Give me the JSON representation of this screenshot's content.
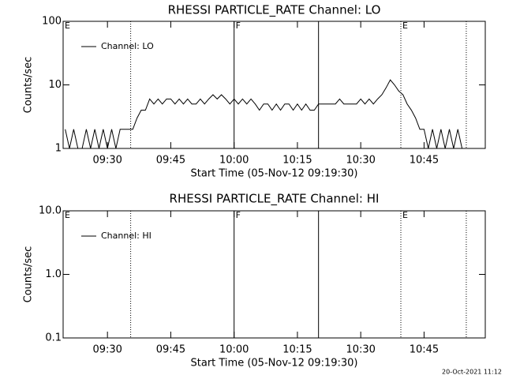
{
  "chart_data": [
    {
      "type": "line",
      "title": "RHESSI PARTICLE_RATE Channel: LO",
      "y_label": "Counts/sec",
      "x_label": "Start Time (05-Nov-12 09:19:30)",
      "xlim": [
        "09:19:30",
        "10:59:30"
      ],
      "xticks": [
        "09:30",
        "09:45",
        "10:00",
        "10:15",
        "10:30",
        "10:45"
      ],
      "ylim": [
        1,
        100
      ],
      "yticks": [
        1,
        10,
        100
      ],
      "ylog": true,
      "legend": "top-left",
      "lines": [
        {
          "x": "09:35:30",
          "style": "dotted"
        },
        {
          "x": "10:00",
          "style": "solid"
        },
        {
          "x": "10:20",
          "style": "solid"
        },
        {
          "x": "10:39:30",
          "style": "dotted"
        },
        {
          "x": "10:55",
          "style": "dotted"
        }
      ],
      "annotations": [
        {
          "label": "E",
          "x": "09:19:30"
        },
        {
          "label": "F",
          "x": "10:00"
        },
        {
          "label": "E",
          "x": "10:39:30"
        }
      ],
      "series": [
        {
          "name": "Channel: LO",
          "color": "#000000",
          "x": [
            "09:20",
            "09:21",
            "09:22",
            "09:23",
            "09:24",
            "09:25",
            "09:26",
            "09:27",
            "09:28",
            "09:29",
            "09:30",
            "09:31",
            "09:32",
            "09:33",
            "09:34",
            "09:35",
            "09:36",
            "09:37",
            "09:38",
            "09:39",
            "09:40",
            "09:41",
            "09:42",
            "09:43",
            "09:44",
            "09:45",
            "09:46",
            "09:47",
            "09:48",
            "09:49",
            "09:50",
            "09:51",
            "09:52",
            "09:53",
            "09:54",
            "09:55",
            "09:56",
            "09:57",
            "09:58",
            "09:59",
            "10:00",
            "10:01",
            "10:02",
            "10:03",
            "10:04",
            "10:05",
            "10:06",
            "10:07",
            "10:08",
            "10:09",
            "10:10",
            "10:11",
            "10:12",
            "10:13",
            "10:14",
            "10:15",
            "10:16",
            "10:17",
            "10:18",
            "10:19",
            "10:20",
            "10:21",
            "10:22",
            "10:23",
            "10:24",
            "10:25",
            "10:26",
            "10:27",
            "10:28",
            "10:29",
            "10:30",
            "10:31",
            "10:32",
            "10:33",
            "10:34",
            "10:35",
            "10:36",
            "10:37",
            "10:38",
            "10:39",
            "10:40",
            "10:41",
            "10:42",
            "10:43",
            "10:44",
            "10:45",
            "10:46",
            "10:47",
            "10:48",
            "10:49",
            "10:50",
            "10:51",
            "10:52",
            "10:53",
            "10:54"
          ],
          "values": [
            2,
            1,
            2,
            1,
            1,
            2,
            1,
            2,
            1,
            2,
            1,
            2,
            1,
            2,
            2,
            2,
            2,
            3,
            4,
            4,
            6,
            5,
            6,
            5,
            6,
            6,
            5,
            6,
            5,
            6,
            5,
            5,
            6,
            5,
            6,
            7,
            6,
            7,
            6,
            5,
            6,
            5,
            6,
            5,
            6,
            5,
            4,
            5,
            5,
            4,
            5,
            4,
            5,
            5,
            4,
            5,
            4,
            5,
            4,
            4,
            5,
            5,
            5,
            5,
            5,
            6,
            5,
            5,
            5,
            5,
            6,
            5,
            6,
            5,
            6,
            7,
            9,
            12,
            10,
            8,
            7,
            5,
            4,
            3,
            2,
            2,
            1,
            2,
            1,
            2,
            1,
            2,
            1,
            2,
            1
          ]
        }
      ]
    },
    {
      "type": "line",
      "title": "RHESSI PARTICLE_RATE Channel: HI",
      "y_label": "Counts/sec",
      "x_label": "Start Time (05-Nov-12 09:19:30)",
      "xlim": [
        "09:19:30",
        "10:59:30"
      ],
      "xticks": [
        "09:30",
        "09:45",
        "10:00",
        "10:15",
        "10:30",
        "10:45"
      ],
      "ylim": [
        0.1,
        10
      ],
      "yticks": [
        0.1,
        {
          "value": 1,
          "label": "1.0"
        },
        {
          "value": 10,
          "label": "10.0"
        }
      ],
      "ylog": true,
      "legend": "top-left",
      "lines": [
        {
          "x": "09:35:30",
          "style": "dotted"
        },
        {
          "x": "10:00",
          "style": "solid"
        },
        {
          "x": "10:20",
          "style": "solid"
        },
        {
          "x": "10:39:30",
          "style": "dotted"
        },
        {
          "x": "10:55",
          "style": "dotted"
        }
      ],
      "annotations": [
        {
          "label": "E",
          "x": "09:19:30"
        },
        {
          "label": "F",
          "x": "10:00"
        },
        {
          "label": "E",
          "x": "10:39:30"
        }
      ],
      "series": [
        {
          "name": "Channel: HI",
          "color": "#000000",
          "x": [],
          "values": []
        }
      ]
    }
  ],
  "footer": "20-Oct-2021 11:12"
}
